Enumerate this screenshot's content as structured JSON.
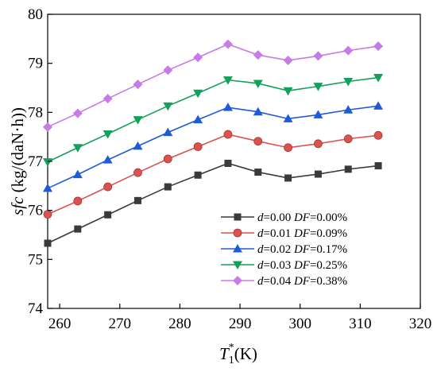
{
  "chart_data": {
    "type": "line",
    "title": "",
    "xlabel": {
      "main": "T",
      "sub": "1",
      "sup": "*",
      "unit": "(K)"
    },
    "ylabel": {
      "italic": "sfc",
      "unit": " (kg/(daN·h))"
    },
    "xlim": [
      258,
      320
    ],
    "ylim": [
      74,
      80
    ],
    "xticks": [
      260,
      270,
      280,
      290,
      300,
      310,
      320
    ],
    "yticks": [
      74,
      75,
      76,
      77,
      78,
      79,
      80
    ],
    "grid": false,
    "legend_position": "bottom-right",
    "x": [
      258,
      263,
      268,
      273,
      278,
      283,
      288,
      293,
      298,
      303,
      308,
      313
    ],
    "series": [
      {
        "d_label": "d",
        "d_value": "=0.00",
        "df_label": "DF",
        "df_value": "=0.00%",
        "color": "#3a3a3a",
        "marker": "square",
        "values": [
          75.33,
          75.62,
          75.91,
          76.2,
          76.48,
          76.72,
          76.96,
          76.78,
          76.66,
          76.74,
          76.84,
          76.91
        ]
      },
      {
        "d_label": "d",
        "d_value": "=0.01",
        "df_label": "DF",
        "df_value": "=0.09%",
        "color": "#d9534f",
        "marker": "circle",
        "values": [
          75.92,
          76.19,
          76.48,
          76.77,
          77.05,
          77.3,
          77.55,
          77.41,
          77.28,
          77.36,
          77.46,
          77.53
        ]
      },
      {
        "d_label": "d",
        "d_value": "=0.02",
        "df_label": "DF",
        "df_value": "=0.17%",
        "color": "#1f5bd6",
        "marker": "triangle-up",
        "values": [
          76.45,
          76.73,
          77.03,
          77.31,
          77.59,
          77.85,
          78.1,
          78.01,
          77.87,
          77.95,
          78.05,
          78.13
        ]
      },
      {
        "d_label": "d",
        "d_value": "=0.03",
        "df_label": "DF",
        "df_value": "=0.25%",
        "color": "#13a05a",
        "marker": "triangle-down",
        "values": [
          76.99,
          77.28,
          77.56,
          77.85,
          78.13,
          78.39,
          78.66,
          78.59,
          78.44,
          78.53,
          78.63,
          78.71
        ]
      },
      {
        "d_label": "d",
        "d_value": "=0.04",
        "df_label": "DF",
        "df_value": "=0.38%",
        "color": "#c67be8",
        "marker": "diamond",
        "values": [
          77.7,
          77.98,
          78.28,
          78.57,
          78.86,
          79.12,
          79.39,
          79.17,
          79.06,
          79.15,
          79.26,
          79.35
        ]
      }
    ]
  }
}
